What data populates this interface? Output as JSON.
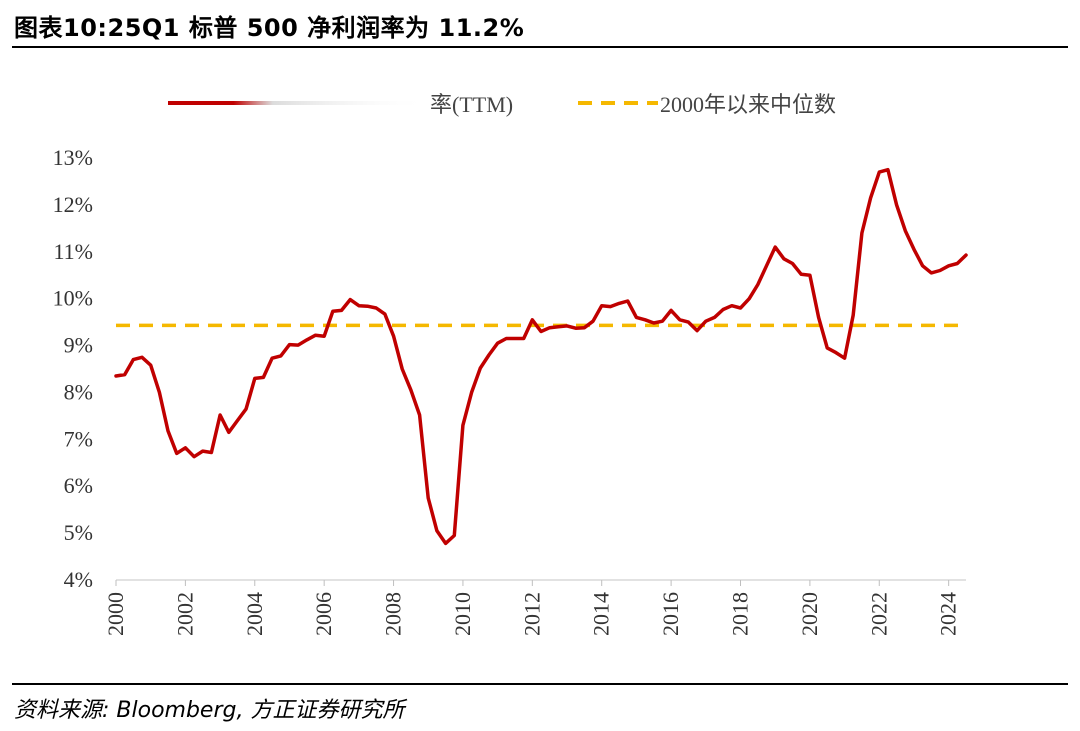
{
  "title": "图表10:25Q1 标普 500 净利润率为 11.2%",
  "source": "资料来源: Bloomberg, 方正证券研究所",
  "chart_data": {
    "type": "line",
    "ylim": [
      0.04,
      0.13
    ],
    "xlim": [
      2000,
      2024.5
    ],
    "y_ticks": [
      "4%",
      "5%",
      "6%",
      "7%",
      "8%",
      "9%",
      "10%",
      "11%",
      "12%",
      "13%"
    ],
    "x_ticks": [
      "2000",
      "2002",
      "2004",
      "2006",
      "2008",
      "2010",
      "2012",
      "2014",
      "2016",
      "2018",
      "2020",
      "2022",
      "2024"
    ],
    "grid": false,
    "legend": "top",
    "series": [
      {
        "name": "率(TTM)",
        "color": "#c00000",
        "x": [
          2000,
          2000.25,
          2000.5,
          2000.75,
          2001,
          2001.25,
          2001.5,
          2001.75,
          2002,
          2002.25,
          2002.5,
          2002.75,
          2003,
          2003.25,
          2003.5,
          2003.75,
          2004,
          2004.25,
          2004.5,
          2004.75,
          2005,
          2005.25,
          2005.5,
          2005.75,
          2006,
          2006.25,
          2006.5,
          2006.75,
          2007,
          2007.25,
          2007.5,
          2007.75,
          2008,
          2008.25,
          2008.5,
          2008.75,
          2009,
          2009.25,
          2009.5,
          2009.75,
          2010,
          2010.25,
          2010.5,
          2010.75,
          2011,
          2011.25,
          2011.5,
          2011.75,
          2012,
          2012.25,
          2012.5,
          2012.75,
          2013,
          2013.25,
          2013.5,
          2013.75,
          2014,
          2014.25,
          2014.5,
          2014.75,
          2015,
          2015.25,
          2015.5,
          2015.75,
          2016,
          2016.25,
          2016.5,
          2016.75,
          2017,
          2017.25,
          2017.5,
          2017.75,
          2018,
          2018.25,
          2018.5,
          2018.75,
          2019,
          2019.25,
          2019.5,
          2019.75,
          2020,
          2020.25,
          2020.5,
          2020.75,
          2021,
          2021.25,
          2021.5,
          2021.75,
          2022,
          2022.25,
          2022.5,
          2022.75,
          2023,
          2023.25,
          2023.5,
          2023.75,
          2024,
          2024.25,
          2024.5
        ],
        "y": [
          0.0835,
          0.0838,
          0.087,
          0.0875,
          0.0858,
          0.08,
          0.0718,
          0.067,
          0.0682,
          0.0663,
          0.0675,
          0.0672,
          0.0752,
          0.0715,
          0.074,
          0.0765,
          0.083,
          0.0832,
          0.0873,
          0.0878,
          0.0902,
          0.0901,
          0.0912,
          0.0922,
          0.092,
          0.0973,
          0.0975,
          0.0998,
          0.0985,
          0.0984,
          0.098,
          0.0967,
          0.092,
          0.085,
          0.0805,
          0.0752,
          0.0575,
          0.0505,
          0.0478,
          0.0495,
          0.073,
          0.08,
          0.0852,
          0.088,
          0.0905,
          0.0915,
          0.0915,
          0.0915,
          0.0955,
          0.093,
          0.0938,
          0.094,
          0.0942,
          0.0937,
          0.0938,
          0.0952,
          0.0985,
          0.0983,
          0.099,
          0.0995,
          0.096,
          0.0955,
          0.0948,
          0.0952,
          0.0975,
          0.0955,
          0.095,
          0.0932,
          0.0952,
          0.096,
          0.0977,
          0.0985,
          0.098,
          0.1,
          0.103,
          0.107,
          0.111,
          0.1085,
          0.1075,
          0.1052,
          0.105,
          0.096,
          0.0895,
          0.0885,
          0.0873,
          0.0965,
          0.114,
          0.1215,
          0.127,
          0.1275,
          0.12,
          0.1145,
          0.1105,
          0.107,
          0.1055,
          0.106,
          0.107,
          0.1075,
          0.1093
        ]
      },
      {
        "name": "2000年以来中位数",
        "color": "#f5b800",
        "dashed": true,
        "value": 0.0943
      }
    ]
  }
}
